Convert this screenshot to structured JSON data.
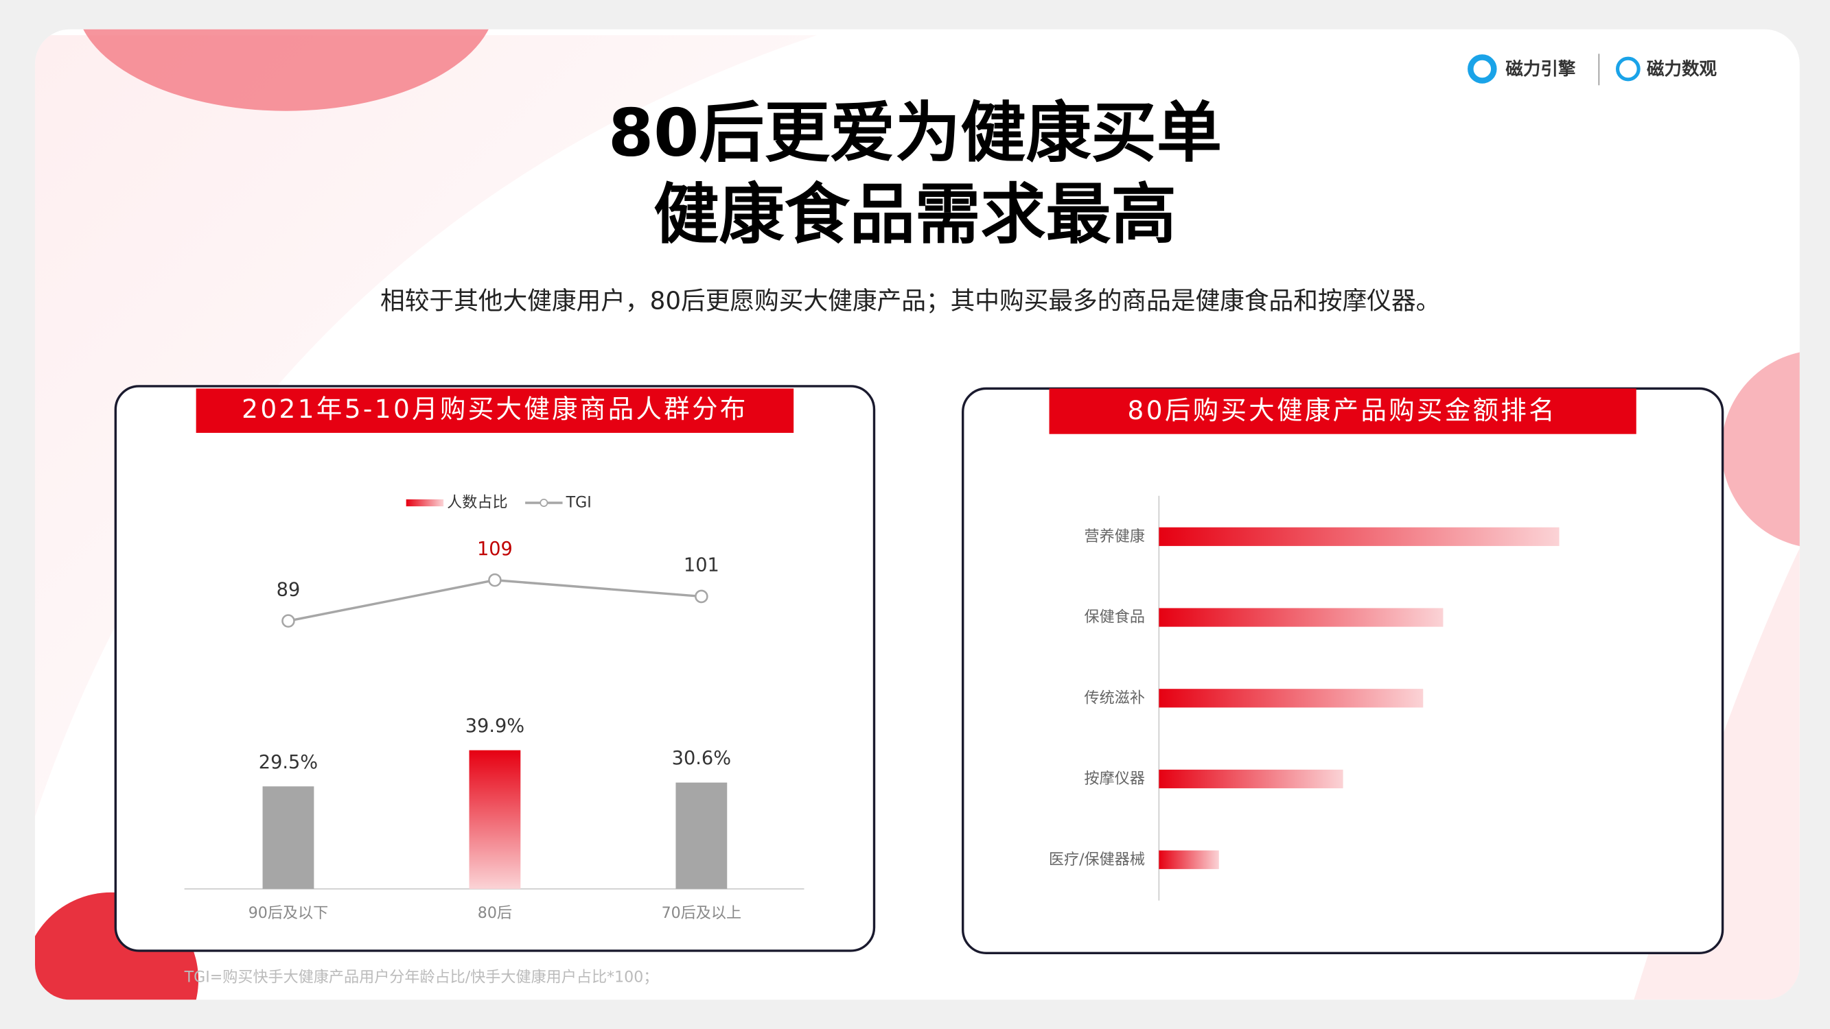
{
  "header": {
    "title_lines": [
      "80后更爱为健康买单",
      "健康食品需求最高"
    ],
    "subtitle": "相较于其他大健康用户，80后更愿购买大健康产品；其中购买最多的商品是健康食品和按摩仪器。",
    "logos": [
      "磁力引擎",
      "磁力数观"
    ]
  },
  "footnote": "TGI=购买快手大健康产品用户分年龄占比/快手大健康用户占比*100；",
  "chart_data": [
    {
      "type": "combo",
      "title": "2021年5-10月购买大健康商品人群分布",
      "categories": [
        "90后及以下",
        "80后",
        "70后及以上"
      ],
      "series": [
        {
          "name": "人数占比",
          "kind": "bar",
          "colors": [
            "#a6a6a6",
            "#e60012",
            "#a6a6a6"
          ],
          "values": [
            29.5,
            39.9,
            30.6
          ],
          "value_labels": [
            "29.5%",
            "39.9%",
            "30.6%"
          ]
        },
        {
          "name": "TGI",
          "kind": "line",
          "color": "#a6a6a6",
          "label_colors": [
            "#333333",
            "#c00000",
            "#333333"
          ],
          "values": [
            89,
            109,
            101
          ]
        }
      ]
    },
    {
      "type": "barh",
      "title": "80后购买大健康产品购买金额排名",
      "categories": [
        "营养健康",
        "保健食品",
        "传统滋补",
        "按摩仪器",
        "医疗/保健器械"
      ],
      "color": "#e60012",
      "values": [
        100,
        71,
        66,
        46,
        15
      ]
    }
  ]
}
